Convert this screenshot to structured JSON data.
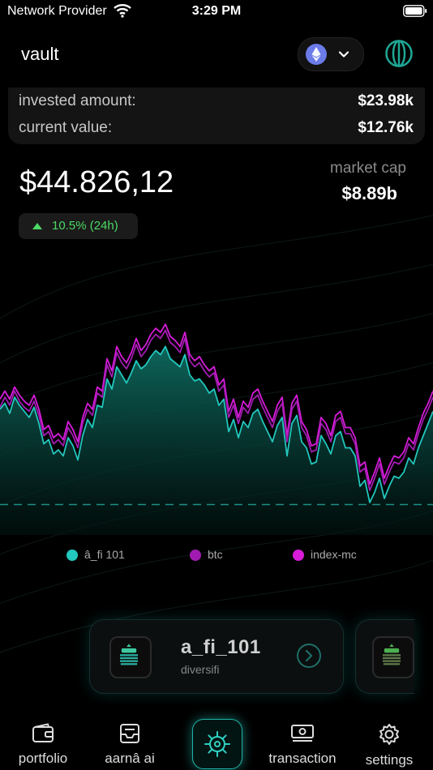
{
  "status_bar": {
    "carrier": "Network Provider",
    "time": "3:29 PM"
  },
  "header": {
    "title": "vault",
    "chain_icon": "ethereum-icon",
    "menu_icon": "globe-icon"
  },
  "summary": {
    "invested_label": "invested amount:",
    "invested_value": "$23.98k",
    "current_label": "current value:",
    "current_value": "$12.76k"
  },
  "portfolio": {
    "value": "$44.826,12",
    "market_cap_label": "market cap",
    "market_cap_value": "$8.89b",
    "change": "10.5% (24h)"
  },
  "chart_data": {
    "type": "line",
    "x": [
      0,
      1,
      2,
      3,
      4,
      5,
      6,
      7,
      8,
      9,
      10,
      11,
      12,
      13,
      14,
      15,
      16,
      17,
      18,
      19,
      20,
      21,
      22,
      23,
      24,
      25,
      26,
      27,
      28,
      29,
      30,
      31,
      32,
      33,
      34,
      35,
      36,
      37,
      38,
      39,
      40,
      41,
      42,
      43,
      44,
      45,
      46,
      47,
      48,
      49,
      50,
      51,
      52,
      53,
      54,
      55,
      56,
      57,
      58,
      59,
      60,
      61,
      62,
      63,
      64,
      65,
      66,
      67,
      68,
      69,
      70,
      71,
      72,
      73,
      74,
      75,
      76,
      77,
      78,
      79,
      80,
      81,
      82,
      83,
      84,
      85,
      86,
      87,
      88,
      89
    ],
    "series": [
      {
        "name": "â_fi 101",
        "color": "#22c7bd",
        "values": [
          47,
          50,
          45,
          53,
          49,
          46,
          43,
          48,
          40,
          30,
          32,
          25,
          27,
          24,
          33,
          29,
          22,
          34,
          42,
          38,
          49,
          48,
          62,
          57,
          68,
          64,
          60,
          65,
          71,
          67,
          69,
          73,
          76,
          74,
          78,
          72,
          70,
          68,
          74,
          64,
          61,
          62,
          59,
          55,
          57,
          49,
          52,
          36,
          42,
          33,
          41,
          38,
          45,
          47,
          41,
          36,
          31,
          39,
          43,
          24,
          40,
          44,
          31,
          28,
          20,
          21,
          34,
          30,
          25,
          34,
          36,
          28,
          28,
          24,
          9,
          12,
          1,
          6,
          13,
          3,
          9,
          14,
          13,
          16,
          23,
          20,
          28,
          34,
          40,
          46
        ]
      },
      {
        "name": "btc",
        "color": "#a01cb0",
        "values": [
          48,
          53,
          49,
          56,
          51,
          48,
          46,
          51,
          44,
          34,
          36,
          30,
          32,
          29,
          38,
          34,
          28,
          40,
          47,
          44,
          55,
          53,
          69,
          63,
          75,
          70,
          67,
          72,
          79,
          73,
          76,
          81,
          84,
          82,
          86,
          80,
          78,
          75,
          82,
          71,
          68,
          70,
          66,
          63,
          65,
          56,
          59,
          43,
          49,
          40,
          48,
          45,
          52,
          54,
          48,
          43,
          38,
          46,
          50,
          31,
          47,
          51,
          38,
          34,
          26,
          27,
          40,
          37,
          31,
          41,
          43,
          35,
          35,
          30,
          16,
          18,
          7,
          13,
          20,
          10,
          16,
          21,
          20,
          23,
          30,
          27,
          35,
          42,
          47,
          53
        ]
      },
      {
        "name": "index-mc",
        "color": "#d61bd9",
        "values": [
          52,
          56,
          52,
          58,
          54,
          51,
          49,
          54,
          47,
          37,
          39,
          33,
          35,
          32,
          41,
          37,
          31,
          43,
          50,
          47,
          58,
          56,
          72,
          66,
          78,
          73,
          70,
          75,
          82,
          76,
          79,
          84,
          87,
          85,
          89,
          83,
          81,
          78,
          85,
          74,
          71,
          73,
          69,
          66,
          68,
          59,
          62,
          46,
          52,
          43,
          51,
          48,
          55,
          57,
          51,
          46,
          41,
          49,
          53,
          34,
          50,
          54,
          41,
          37,
          29,
          30,
          43,
          40,
          34,
          44,
          46,
          38,
          38,
          33,
          19,
          21,
          10,
          16,
          23,
          13,
          19,
          24,
          23,
          26,
          33,
          30,
          38,
          45,
          50,
          56
        ]
      }
    ],
    "ylim": [
      -15,
      105
    ],
    "baseline": 0,
    "grid": false
  },
  "legend": [
    {
      "label": "â_fi 101",
      "color": "#22c7bd"
    },
    {
      "label": "btc",
      "color": "#a01cb0"
    },
    {
      "label": "index-mc",
      "color": "#d61bd9"
    }
  ],
  "funds": [
    {
      "name": "a_fi_101",
      "subtitle": "diversifi"
    }
  ],
  "nav": {
    "portfolio": "portfolio",
    "aarna_ai": "aarnâ ai",
    "transaction": "transaction",
    "settings": "settings"
  }
}
